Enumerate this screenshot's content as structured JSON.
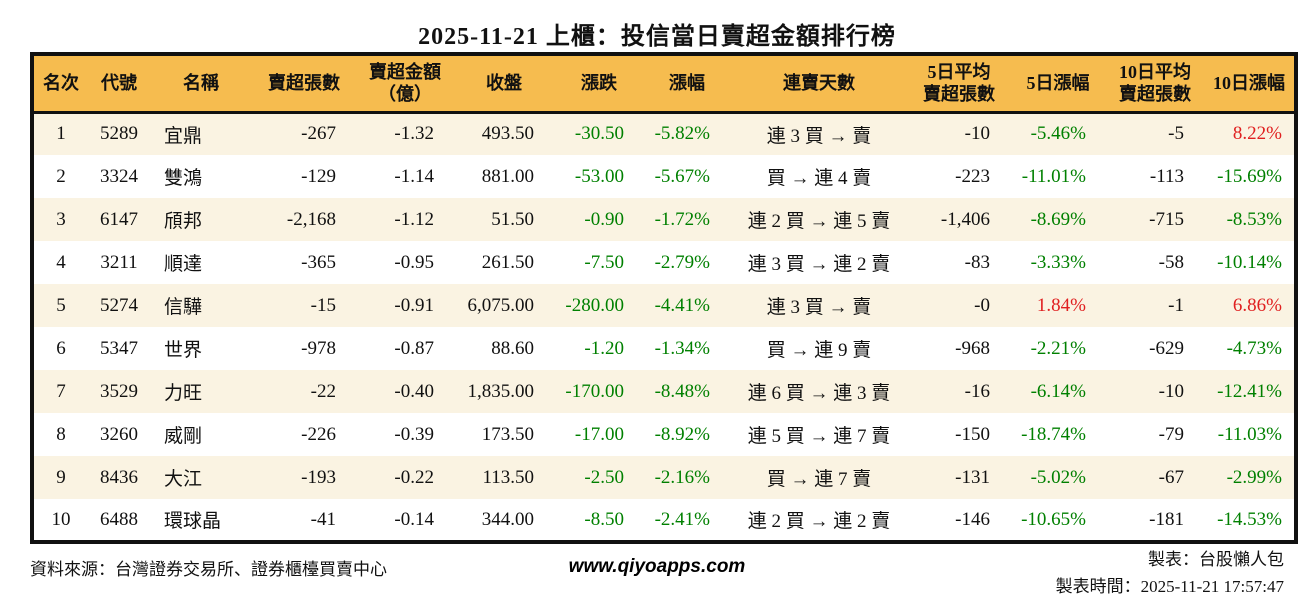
{
  "title": "2025-11-21 上櫃：投信當日賣超金額排行榜",
  "colors": {
    "header_bg": "#f6bc4f",
    "row_alt_bg": "#faf3e2",
    "down_green": "#008000",
    "up_red": "#e02020"
  },
  "header": {
    "rank": "名次",
    "code": "代號",
    "name": "名稱",
    "lots": "賣超張數",
    "amount": "賣超金額\n（億）",
    "close": "收盤",
    "chg": "漲跌",
    "chgp": "漲幅",
    "streak": "連賣天數",
    "avg5": "5日平均\n賣超張數",
    "p5": "5日漲幅",
    "avg10": "10日平均\n賣超張數",
    "p10": "10日漲幅"
  },
  "rows": [
    {
      "rank": "1",
      "code": "5289",
      "name": "宜鼎",
      "lots": "-267",
      "amount": "-1.32",
      "close": "493.50",
      "chg": "-30.50",
      "chgc": "neg",
      "chgp": "-5.82%",
      "chgpc": "neg",
      "streak": "連 3 買 → 賣",
      "avg5": "-10",
      "p5": "-5.46%",
      "p5c": "neg",
      "avg10": "-5",
      "p10": "8.22%",
      "p10c": "pos"
    },
    {
      "rank": "2",
      "code": "3324",
      "name": "雙鴻",
      "lots": "-129",
      "amount": "-1.14",
      "close": "881.00",
      "chg": "-53.00",
      "chgc": "neg",
      "chgp": "-5.67%",
      "chgpc": "neg",
      "streak": "買 → 連 4 賣",
      "avg5": "-223",
      "p5": "-11.01%",
      "p5c": "neg",
      "avg10": "-113",
      "p10": "-15.69%",
      "p10c": "neg"
    },
    {
      "rank": "3",
      "code": "6147",
      "name": "頎邦",
      "lots": "-2,168",
      "amount": "-1.12",
      "close": "51.50",
      "chg": "-0.90",
      "chgc": "neg",
      "chgp": "-1.72%",
      "chgpc": "neg",
      "streak": "連 2 買 → 連 5 賣",
      "avg5": "-1,406",
      "p5": "-8.69%",
      "p5c": "neg",
      "avg10": "-715",
      "p10": "-8.53%",
      "p10c": "neg"
    },
    {
      "rank": "4",
      "code": "3211",
      "name": "順達",
      "lots": "-365",
      "amount": "-0.95",
      "close": "261.50",
      "chg": "-7.50",
      "chgc": "neg",
      "chgp": "-2.79%",
      "chgpc": "neg",
      "streak": "連 3 買 → 連 2 賣",
      "avg5": "-83",
      "p5": "-3.33%",
      "p5c": "neg",
      "avg10": "-58",
      "p10": "-10.14%",
      "p10c": "neg"
    },
    {
      "rank": "5",
      "code": "5274",
      "name": "信驊",
      "lots": "-15",
      "amount": "-0.91",
      "close": "6,075.00",
      "chg": "-280.00",
      "chgc": "neg",
      "chgp": "-4.41%",
      "chgpc": "neg",
      "streak": "連 3 買 → 賣",
      "avg5": "-0",
      "p5": "1.84%",
      "p5c": "pos",
      "avg10": "-1",
      "p10": "6.86%",
      "p10c": "pos"
    },
    {
      "rank": "6",
      "code": "5347",
      "name": "世界",
      "lots": "-978",
      "amount": "-0.87",
      "close": "88.60",
      "chg": "-1.20",
      "chgc": "neg",
      "chgp": "-1.34%",
      "chgpc": "neg",
      "streak": "買 → 連 9 賣",
      "avg5": "-968",
      "p5": "-2.21%",
      "p5c": "neg",
      "avg10": "-629",
      "p10": "-4.73%",
      "p10c": "neg"
    },
    {
      "rank": "7",
      "code": "3529",
      "name": "力旺",
      "lots": "-22",
      "amount": "-0.40",
      "close": "1,835.00",
      "chg": "-170.00",
      "chgc": "neg",
      "chgp": "-8.48%",
      "chgpc": "neg",
      "streak": "連 6 買 → 連 3 賣",
      "avg5": "-16",
      "p5": "-6.14%",
      "p5c": "neg",
      "avg10": "-10",
      "p10": "-12.41%",
      "p10c": "neg"
    },
    {
      "rank": "8",
      "code": "3260",
      "name": "威剛",
      "lots": "-226",
      "amount": "-0.39",
      "close": "173.50",
      "chg": "-17.00",
      "chgc": "neg",
      "chgp": "-8.92%",
      "chgpc": "neg",
      "streak": "連 5 買 → 連 7 賣",
      "avg5": "-150",
      "p5": "-18.74%",
      "p5c": "neg",
      "avg10": "-79",
      "p10": "-11.03%",
      "p10c": "neg"
    },
    {
      "rank": "9",
      "code": "8436",
      "name": "大江",
      "lots": "-193",
      "amount": "-0.22",
      "close": "113.50",
      "chg": "-2.50",
      "chgc": "neg",
      "chgp": "-2.16%",
      "chgpc": "neg",
      "streak": "買 → 連 7 賣",
      "avg5": "-131",
      "p5": "-5.02%",
      "p5c": "neg",
      "avg10": "-67",
      "p10": "-2.99%",
      "p10c": "neg"
    },
    {
      "rank": "10",
      "code": "6488",
      "name": "環球晶",
      "lots": "-41",
      "amount": "-0.14",
      "close": "344.00",
      "chg": "-8.50",
      "chgc": "neg",
      "chgp": "-2.41%",
      "chgpc": "neg",
      "streak": "連 2 買 → 連 2 賣",
      "avg5": "-146",
      "p5": "-10.65%",
      "p5c": "neg",
      "avg10": "-181",
      "p10": "-14.53%",
      "p10c": "neg"
    }
  ],
  "footer": {
    "source": "資料來源：台灣證券交易所、證券櫃檯買賣中心",
    "site": "www.qiyoapps.com",
    "maker": "製表：台股懶人包",
    "made_at": "製表時間：2025-11-21 17:57:47"
  }
}
